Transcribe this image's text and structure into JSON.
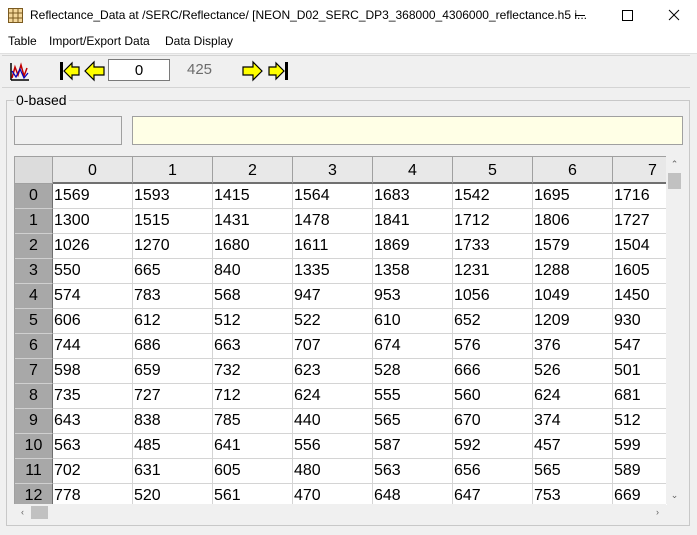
{
  "window": {
    "title": "Reflectance_Data  at  /SERC/Reflectance/  [NEON_D02_SERC_DP3_368000_4306000_reflectance.h5  i..."
  },
  "menu": {
    "items": [
      "Table",
      "Import/Export Data",
      "Data Display"
    ]
  },
  "toolbar": {
    "page_value": "0",
    "page_max": "425"
  },
  "panel": {
    "label": "0-based",
    "cell_ref": "",
    "cell_value": ""
  },
  "table": {
    "columns": [
      "0",
      "1",
      "2",
      "3",
      "4",
      "5",
      "6",
      "7"
    ],
    "rows": [
      {
        "index": "0",
        "cells": [
          "1569",
          "1593",
          "1415",
          "1564",
          "1683",
          "1542",
          "1695",
          "1716"
        ]
      },
      {
        "index": "1",
        "cells": [
          "1300",
          "1515",
          "1431",
          "1478",
          "1841",
          "1712",
          "1806",
          "1727"
        ]
      },
      {
        "index": "2",
        "cells": [
          "1026",
          "1270",
          "1680",
          "1611",
          "1869",
          "1733",
          "1579",
          "1504"
        ]
      },
      {
        "index": "3",
        "cells": [
          "550",
          "665",
          "840",
          "1335",
          "1358",
          "1231",
          "1288",
          "1605"
        ]
      },
      {
        "index": "4",
        "cells": [
          "574",
          "783",
          "568",
          "947",
          "953",
          "1056",
          "1049",
          "1450"
        ]
      },
      {
        "index": "5",
        "cells": [
          "606",
          "612",
          "512",
          "522",
          "610",
          "652",
          "1209",
          "930"
        ]
      },
      {
        "index": "6",
        "cells": [
          "744",
          "686",
          "663",
          "707",
          "674",
          "576",
          "376",
          "547"
        ]
      },
      {
        "index": "7",
        "cells": [
          "598",
          "659",
          "732",
          "623",
          "528",
          "666",
          "526",
          "501"
        ]
      },
      {
        "index": "8",
        "cells": [
          "735",
          "727",
          "712",
          "624",
          "555",
          "560",
          "624",
          "681"
        ]
      },
      {
        "index": "9",
        "cells": [
          "643",
          "838",
          "785",
          "440",
          "565",
          "670",
          "374",
          "512"
        ]
      },
      {
        "index": "10",
        "cells": [
          "563",
          "485",
          "641",
          "556",
          "587",
          "592",
          "457",
          "599"
        ]
      },
      {
        "index": "11",
        "cells": [
          "702",
          "631",
          "605",
          "480",
          "563",
          "656",
          "565",
          "589"
        ]
      },
      {
        "index": "12",
        "cells": [
          "778",
          "520",
          "561",
          "470",
          "648",
          "647",
          "753",
          "669"
        ]
      }
    ]
  },
  "colors": {
    "arrow_fill": "#ffff00",
    "cell_value_bg": "#ffffe6",
    "row_header_bg": "#a8a8a8"
  }
}
